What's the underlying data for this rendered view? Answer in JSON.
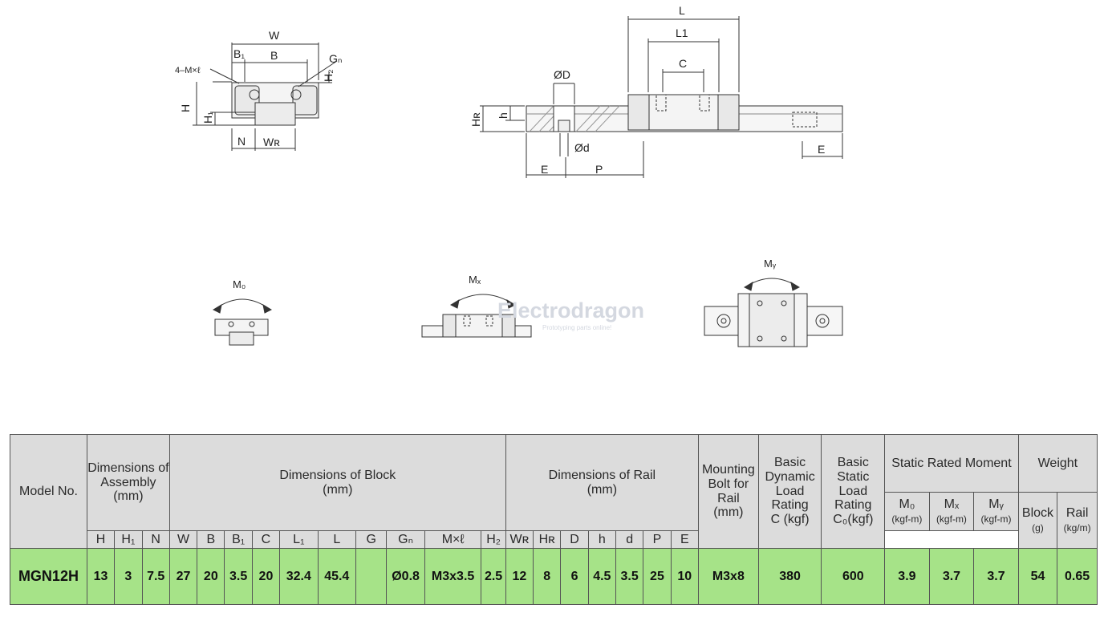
{
  "diagram": {
    "cross_section": {
      "labels": [
        "W",
        "B₁",
        "B",
        "4–M×ℓ",
        "Gₙ",
        "H",
        "H₁",
        "H₂",
        "N",
        "Wʀ"
      ]
    },
    "side_view": {
      "labels": [
        "L",
        "L1",
        "C",
        "ØD",
        "Hʀ",
        "h",
        "Ød",
        "E",
        "P",
        "E"
      ]
    },
    "moments": [
      "M₀",
      "Mₓ",
      "Mᵧ"
    ],
    "watermark": "Electrodragon",
    "watermark_sub": "Prototyping parts online!"
  },
  "table": {
    "model_header": "Model No.",
    "group_assembly": "Dimensions of Assembly (mm)",
    "group_block_title": "Dimensions of Block",
    "group_block_unit": "(mm)",
    "group_rail_title": "Dimensions of Rail",
    "group_rail_unit": "(mm)",
    "mounting_bolt": "Mounting Bolt for Rail",
    "mounting_bolt_unit": "(mm)",
    "dynamic_title": "Basic Dynamic Load Rating",
    "dynamic_unit": "C (kgf)",
    "static_title": "Basic Static Load Rating",
    "static_unit": "C₀(kgf)",
    "moment_group": "Static Rated Moment",
    "weight_group": "Weight",
    "assembly_cols": [
      "H",
      "H₁",
      "N"
    ],
    "block_cols": [
      "W",
      "B",
      "B₁",
      "C",
      "L₁",
      "L",
      "G",
      "Gₙ",
      "M×ℓ",
      "H₂"
    ],
    "rail_cols": [
      "Wʀ",
      "Hʀ",
      "D",
      "h",
      "d",
      "P",
      "E"
    ],
    "moment_cols": [
      "M₀",
      "Mₓ",
      "Mᵧ"
    ],
    "moment_unit": "(kgf-m)",
    "weight_cols": [
      "Block",
      "Rail"
    ],
    "weight_units": [
      "(g)",
      "(kg/m)"
    ],
    "row": {
      "model": "MGN12H",
      "assembly": [
        "13",
        "3",
        "7.5"
      ],
      "block": [
        "27",
        "20",
        "3.5",
        "20",
        "32.4",
        "45.4",
        "",
        "Ø0.8",
        "M3x3.5",
        "2.5"
      ],
      "rail": [
        "12",
        "8",
        "6",
        "4.5",
        "3.5",
        "25",
        "10"
      ],
      "bolt": "M3x8",
      "dynamic": "380",
      "static": "600",
      "moments": [
        "3.9",
        "3.7",
        "3.7"
      ],
      "weights": [
        "54",
        "0.65"
      ]
    }
  }
}
